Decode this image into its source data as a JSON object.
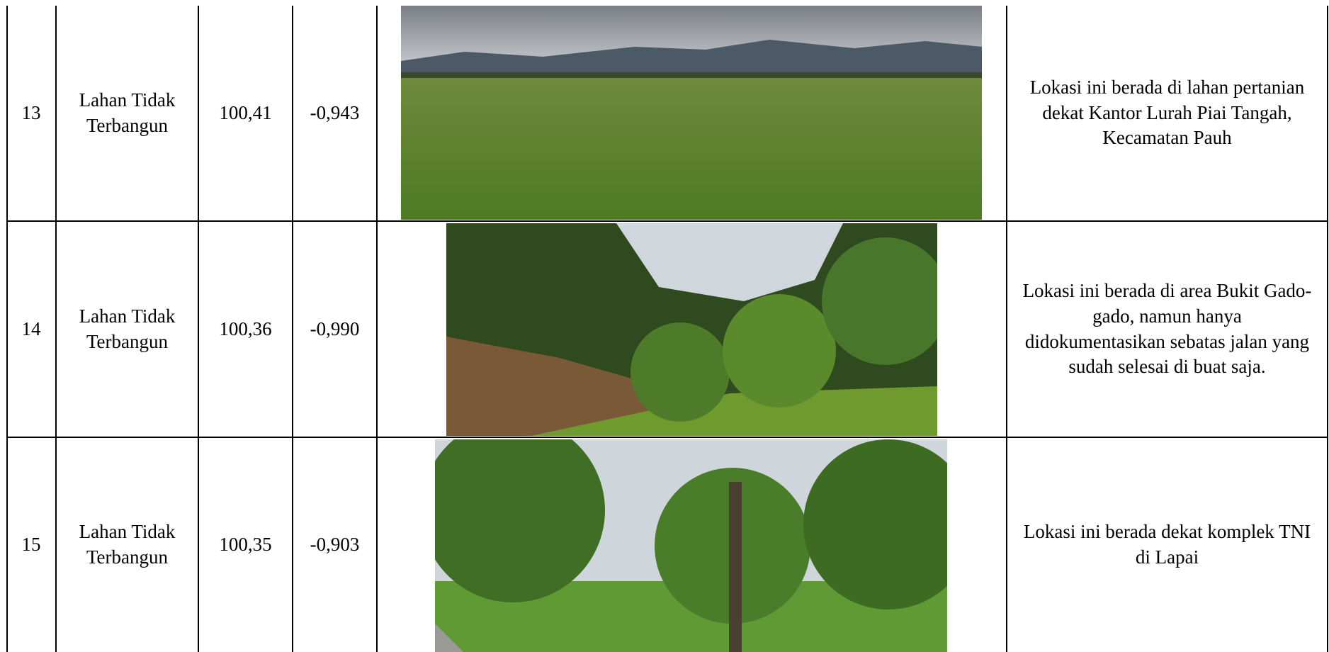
{
  "table": {
    "rows": [
      [
        "13",
        "Lahan Tidak Terbangun",
        "100,41",
        "-0,943",
        "Lokasi ini berada di lahan pertanian dekat Kantor Lurah Piai Tangah, Kecamatan Pauh"
      ],
      [
        "14",
        "Lahan Tidak Terbangun",
        "100,36",
        "-0,990",
        "Lokasi ini berada di area Bukit Gado-gado, namun hanya didokumentasikan sebatas jalan yang sudah selesai di buat saja."
      ],
      [
        "15",
        "Lahan Tidak Terbangun",
        "100,35",
        "-0,903",
        "Lokasi ini berada dekat komplek TNI di Lapai"
      ]
    ]
  }
}
